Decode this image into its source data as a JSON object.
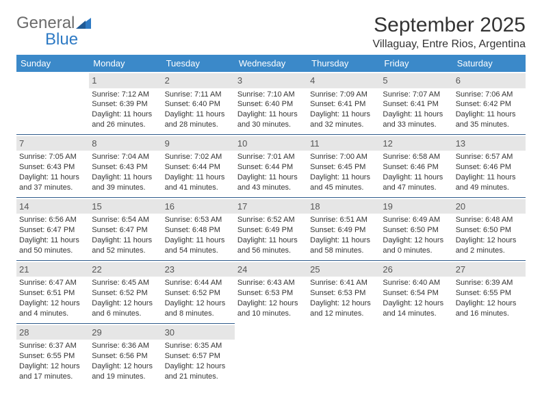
{
  "logo": {
    "text1": "General",
    "text2": "Blue"
  },
  "title": "September 2025",
  "location": "Villaguay, Entre Rios, Argentina",
  "colors": {
    "header_bg": "#3b89c9",
    "header_text": "#ffffff",
    "daynum_bg": "#e6e6e6",
    "daynum_text": "#555555",
    "border": "#2e5a8a",
    "body_text": "#333333",
    "logo_gray": "#6b6b6b",
    "logo_blue": "#2e7ac4",
    "page_bg": "#ffffff"
  },
  "typography": {
    "title_fontsize": 30,
    "location_fontsize": 16,
    "header_fontsize": 13,
    "daynum_fontsize": 13,
    "cell_fontsize": 11
  },
  "weekdays": [
    "Sunday",
    "Monday",
    "Tuesday",
    "Wednesday",
    "Thursday",
    "Friday",
    "Saturday"
  ],
  "weeks": [
    [
      null,
      {
        "n": "1",
        "sr": "Sunrise: 7:12 AM",
        "ss": "Sunset: 6:39 PM",
        "d1": "Daylight: 11 hours",
        "d2": "and 26 minutes."
      },
      {
        "n": "2",
        "sr": "Sunrise: 7:11 AM",
        "ss": "Sunset: 6:40 PM",
        "d1": "Daylight: 11 hours",
        "d2": "and 28 minutes."
      },
      {
        "n": "3",
        "sr": "Sunrise: 7:10 AM",
        "ss": "Sunset: 6:40 PM",
        "d1": "Daylight: 11 hours",
        "d2": "and 30 minutes."
      },
      {
        "n": "4",
        "sr": "Sunrise: 7:09 AM",
        "ss": "Sunset: 6:41 PM",
        "d1": "Daylight: 11 hours",
        "d2": "and 32 minutes."
      },
      {
        "n": "5",
        "sr": "Sunrise: 7:07 AM",
        "ss": "Sunset: 6:41 PM",
        "d1": "Daylight: 11 hours",
        "d2": "and 33 minutes."
      },
      {
        "n": "6",
        "sr": "Sunrise: 7:06 AM",
        "ss": "Sunset: 6:42 PM",
        "d1": "Daylight: 11 hours",
        "d2": "and 35 minutes."
      }
    ],
    [
      {
        "n": "7",
        "sr": "Sunrise: 7:05 AM",
        "ss": "Sunset: 6:43 PM",
        "d1": "Daylight: 11 hours",
        "d2": "and 37 minutes."
      },
      {
        "n": "8",
        "sr": "Sunrise: 7:04 AM",
        "ss": "Sunset: 6:43 PM",
        "d1": "Daylight: 11 hours",
        "d2": "and 39 minutes."
      },
      {
        "n": "9",
        "sr": "Sunrise: 7:02 AM",
        "ss": "Sunset: 6:44 PM",
        "d1": "Daylight: 11 hours",
        "d2": "and 41 minutes."
      },
      {
        "n": "10",
        "sr": "Sunrise: 7:01 AM",
        "ss": "Sunset: 6:44 PM",
        "d1": "Daylight: 11 hours",
        "d2": "and 43 minutes."
      },
      {
        "n": "11",
        "sr": "Sunrise: 7:00 AM",
        "ss": "Sunset: 6:45 PM",
        "d1": "Daylight: 11 hours",
        "d2": "and 45 minutes."
      },
      {
        "n": "12",
        "sr": "Sunrise: 6:58 AM",
        "ss": "Sunset: 6:46 PM",
        "d1": "Daylight: 11 hours",
        "d2": "and 47 minutes."
      },
      {
        "n": "13",
        "sr": "Sunrise: 6:57 AM",
        "ss": "Sunset: 6:46 PM",
        "d1": "Daylight: 11 hours",
        "d2": "and 49 minutes."
      }
    ],
    [
      {
        "n": "14",
        "sr": "Sunrise: 6:56 AM",
        "ss": "Sunset: 6:47 PM",
        "d1": "Daylight: 11 hours",
        "d2": "and 50 minutes."
      },
      {
        "n": "15",
        "sr": "Sunrise: 6:54 AM",
        "ss": "Sunset: 6:47 PM",
        "d1": "Daylight: 11 hours",
        "d2": "and 52 minutes."
      },
      {
        "n": "16",
        "sr": "Sunrise: 6:53 AM",
        "ss": "Sunset: 6:48 PM",
        "d1": "Daylight: 11 hours",
        "d2": "and 54 minutes."
      },
      {
        "n": "17",
        "sr": "Sunrise: 6:52 AM",
        "ss": "Sunset: 6:49 PM",
        "d1": "Daylight: 11 hours",
        "d2": "and 56 minutes."
      },
      {
        "n": "18",
        "sr": "Sunrise: 6:51 AM",
        "ss": "Sunset: 6:49 PM",
        "d1": "Daylight: 11 hours",
        "d2": "and 58 minutes."
      },
      {
        "n": "19",
        "sr": "Sunrise: 6:49 AM",
        "ss": "Sunset: 6:50 PM",
        "d1": "Daylight: 12 hours",
        "d2": "and 0 minutes."
      },
      {
        "n": "20",
        "sr": "Sunrise: 6:48 AM",
        "ss": "Sunset: 6:50 PM",
        "d1": "Daylight: 12 hours",
        "d2": "and 2 minutes."
      }
    ],
    [
      {
        "n": "21",
        "sr": "Sunrise: 6:47 AM",
        "ss": "Sunset: 6:51 PM",
        "d1": "Daylight: 12 hours",
        "d2": "and 4 minutes."
      },
      {
        "n": "22",
        "sr": "Sunrise: 6:45 AM",
        "ss": "Sunset: 6:52 PM",
        "d1": "Daylight: 12 hours",
        "d2": "and 6 minutes."
      },
      {
        "n": "23",
        "sr": "Sunrise: 6:44 AM",
        "ss": "Sunset: 6:52 PM",
        "d1": "Daylight: 12 hours",
        "d2": "and 8 minutes."
      },
      {
        "n": "24",
        "sr": "Sunrise: 6:43 AM",
        "ss": "Sunset: 6:53 PM",
        "d1": "Daylight: 12 hours",
        "d2": "and 10 minutes."
      },
      {
        "n": "25",
        "sr": "Sunrise: 6:41 AM",
        "ss": "Sunset: 6:53 PM",
        "d1": "Daylight: 12 hours",
        "d2": "and 12 minutes."
      },
      {
        "n": "26",
        "sr": "Sunrise: 6:40 AM",
        "ss": "Sunset: 6:54 PM",
        "d1": "Daylight: 12 hours",
        "d2": "and 14 minutes."
      },
      {
        "n": "27",
        "sr": "Sunrise: 6:39 AM",
        "ss": "Sunset: 6:55 PM",
        "d1": "Daylight: 12 hours",
        "d2": "and 16 minutes."
      }
    ],
    [
      {
        "n": "28",
        "sr": "Sunrise: 6:37 AM",
        "ss": "Sunset: 6:55 PM",
        "d1": "Daylight: 12 hours",
        "d2": "and 17 minutes."
      },
      {
        "n": "29",
        "sr": "Sunrise: 6:36 AM",
        "ss": "Sunset: 6:56 PM",
        "d1": "Daylight: 12 hours",
        "d2": "and 19 minutes."
      },
      {
        "n": "30",
        "sr": "Sunrise: 6:35 AM",
        "ss": "Sunset: 6:57 PM",
        "d1": "Daylight: 12 hours",
        "d2": "and 21 minutes."
      },
      null,
      null,
      null,
      null
    ]
  ]
}
